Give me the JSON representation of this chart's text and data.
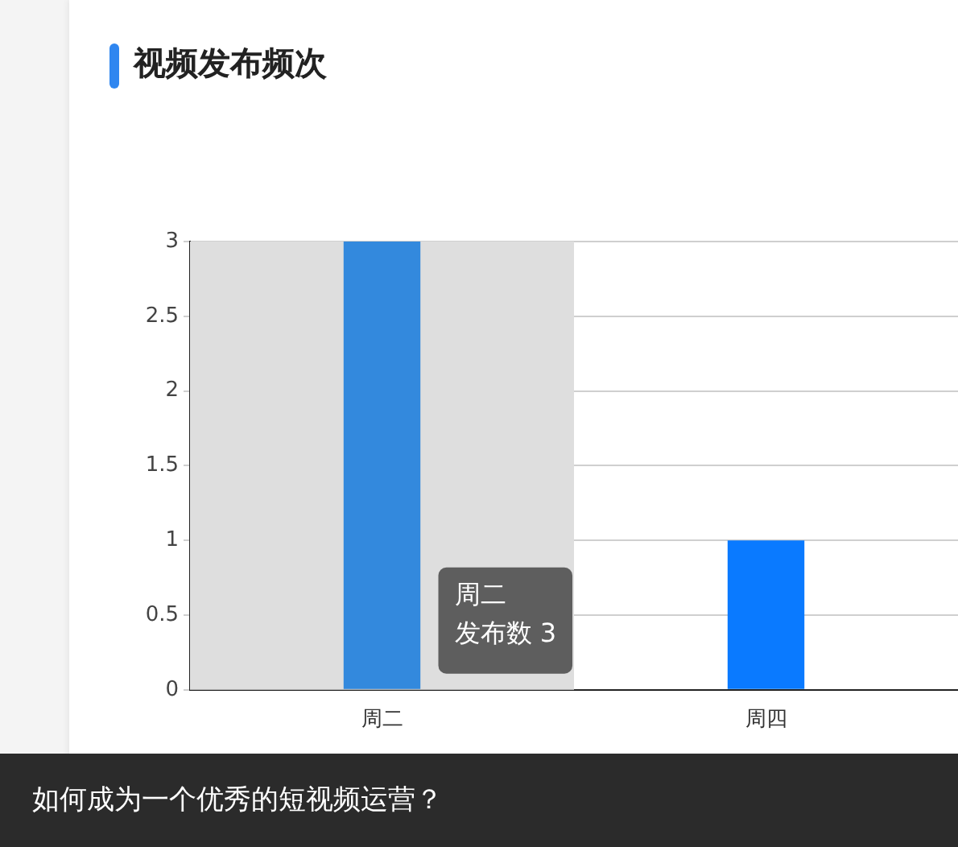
{
  "chart_data": {
    "type": "bar",
    "title": "视频发布频次",
    "categories": [
      "周二",
      "周四"
    ],
    "values": [
      3,
      1
    ],
    "colors": [
      "#3389dd",
      "#0a7aff"
    ],
    "ylim": [
      0,
      3
    ],
    "yticks": [
      0,
      0.5,
      1,
      1.5,
      2,
      2.5,
      3
    ],
    "grid": "y",
    "legend": false,
    "bands": [
      {
        "axis": "x",
        "from": "周二",
        "to": "周二",
        "color": "#dedede"
      }
    ],
    "annotations": [
      "周二",
      "发布数 3",
      "如何成为一个优秀的短视频运营？"
    ]
  }
}
